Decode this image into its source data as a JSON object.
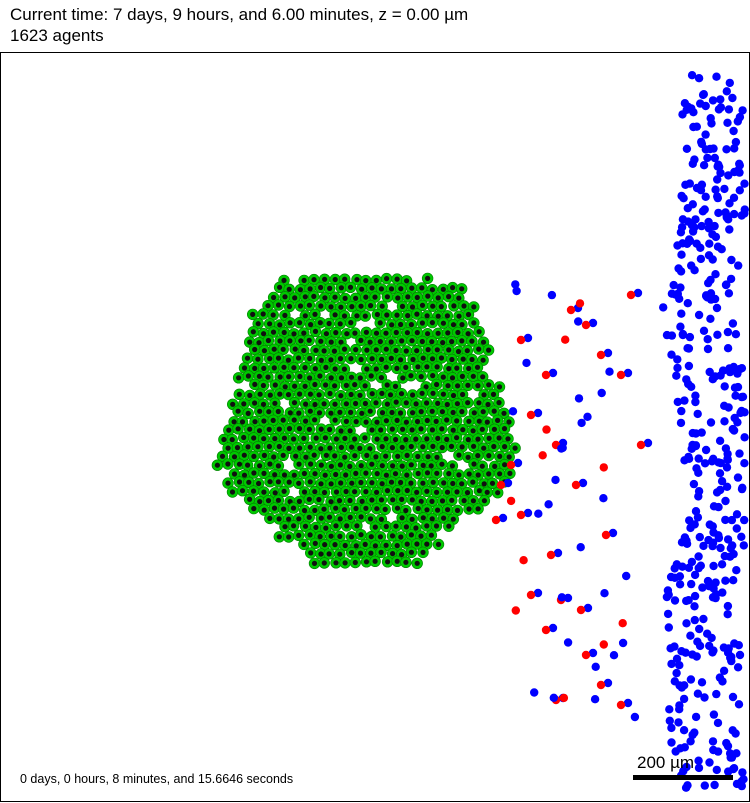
{
  "header": {
    "time_line": "Current time: 7 days, 9 hours, and 6.00 minutes, z = 0.00 µm",
    "agents_line": "1623 agents"
  },
  "footer": {
    "runtime": "0 days, 0 hours, 8 minutes, and 15.6646 seconds",
    "scale_label": "200 µm"
  },
  "colors": {
    "tumor_fill": "#00c800",
    "tumor_nucleus": "#101010",
    "immune_blue": "#0000ff",
    "immune_red": "#ff0000",
    "background": "#ffffff"
  }
}
